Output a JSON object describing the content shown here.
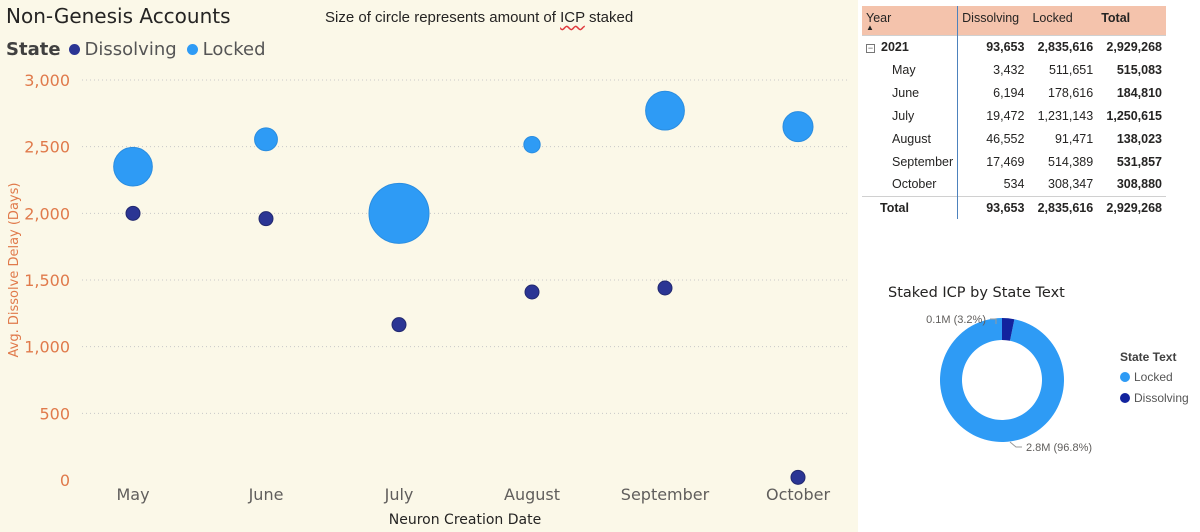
{
  "title": "Non-Genesis Accounts",
  "subtitle_pre": "Size of circle represents amount of ",
  "subtitle_mark": "ICP",
  "subtitle_post": " staked",
  "legend": {
    "title": "State",
    "items": [
      {
        "label": "Dissolving",
        "color": "#2b3594"
      },
      {
        "label": "Locked",
        "color": "#2e9bf5"
      }
    ]
  },
  "chart_data": [
    {
      "type": "scatter",
      "title": "",
      "xlabel": "Neuron Creation Date",
      "ylabel": "Avg. Dissolve Delay (Days)",
      "categories": [
        "May",
        "June",
        "July",
        "August",
        "September",
        "October"
      ],
      "ylim": [
        0,
        3000
      ],
      "yticks": [
        0,
        500,
        1000,
        1500,
        2000,
        2500,
        3000
      ],
      "ytick_labels": [
        "0",
        "500",
        "1,000",
        "1,500",
        "2,000",
        "2,500",
        "3,000"
      ],
      "grid": true,
      "series": [
        {
          "name": "Dissolving",
          "color": "#2b3594",
          "y": [
            2000,
            1960,
            1165,
            1410,
            1440,
            20
          ],
          "size": [
            3432,
            6194,
            19472,
            46552,
            17469,
            534
          ]
        },
        {
          "name": "Locked",
          "color": "#2e9bf5",
          "y": [
            2350,
            2555,
            2000,
            2515,
            2770,
            2650
          ],
          "size": [
            511651,
            178616,
            1231143,
            91471,
            514389,
            308347
          ]
        }
      ]
    },
    {
      "type": "pie",
      "title": "Staked ICP by State Text",
      "legend_title": "State Text",
      "labels": [
        "Locked",
        "Dissolving"
      ],
      "values": [
        2.8,
        0.1
      ],
      "percent": [
        96.8,
        3.2
      ],
      "data_labels": [
        "2.8M (96.8%)",
        "0.1M (3.2%)"
      ],
      "colors": [
        "#2e9bf5",
        "#12239e"
      ]
    }
  ],
  "table": {
    "headers": [
      "Year",
      "Dissolving",
      "Locked",
      "Total"
    ],
    "year_row": [
      "2021",
      "93,653",
      "2,835,616",
      "2,929,268"
    ],
    "rows": [
      [
        "May",
        "3,432",
        "511,651",
        "515,083"
      ],
      [
        "June",
        "6,194",
        "178,616",
        "184,810"
      ],
      [
        "July",
        "19,472",
        "1,231,143",
        "1,250,615"
      ],
      [
        "August",
        "46,552",
        "91,471",
        "138,023"
      ],
      [
        "September",
        "17,469",
        "514,389",
        "531,857"
      ],
      [
        "October",
        "534",
        "308,347",
        "308,880"
      ]
    ],
    "total_row": [
      "Total",
      "93,653",
      "2,835,616",
      "2,929,268"
    ]
  }
}
